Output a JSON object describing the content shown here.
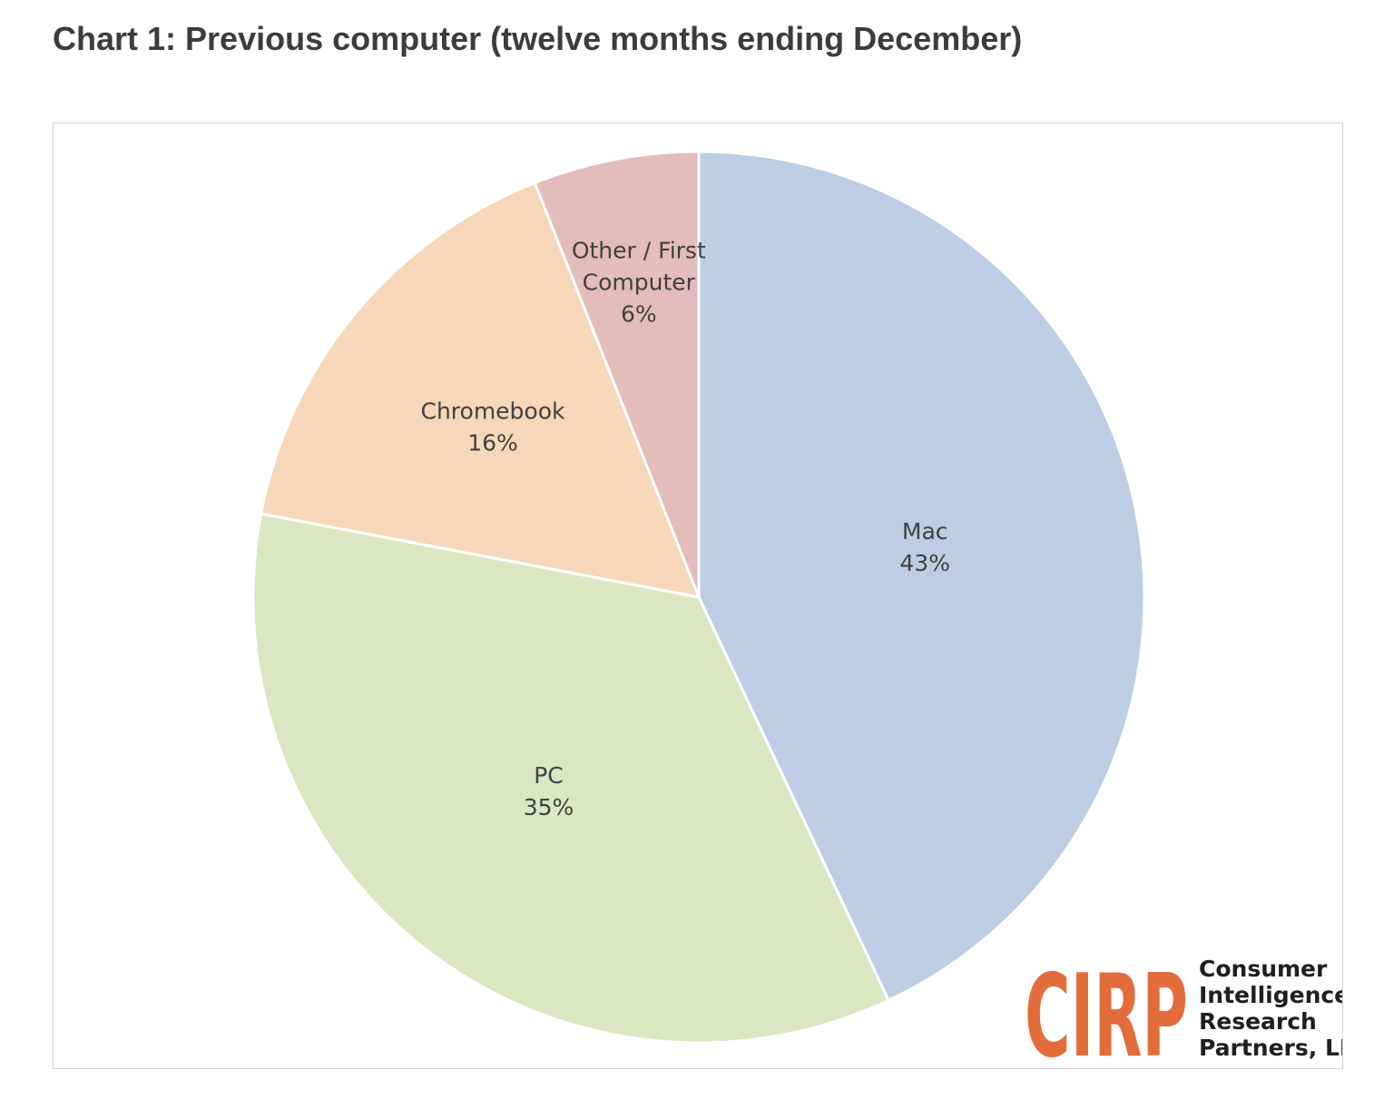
{
  "title": "Chart 1: Previous computer (twelve months ending December)",
  "chart_data": {
    "type": "pie",
    "title": "Chart 1: Previous computer (twelve months ending December)",
    "unit": "%",
    "start_angle": "12 o'clock, clockwise",
    "slices": [
      {
        "label": "Mac",
        "label_lines": [
          "Mac"
        ],
        "value": 43,
        "value_label": "43%",
        "color": "#bccde4"
      },
      {
        "label": "PC",
        "label_lines": [
          "PC"
        ],
        "value": 35,
        "value_label": "35%",
        "color": "#dce6c2"
      },
      {
        "label": "Chromebook",
        "label_lines": [
          "Chromebook"
        ],
        "value": 16,
        "value_label": "16%",
        "color": "#f6d7b9"
      },
      {
        "label": "Other / First Computer",
        "label_lines": [
          "Other / First",
          "Computer"
        ],
        "value": 6,
        "value_label": "6%",
        "color": "#e3bcbc"
      }
    ],
    "legend": "none",
    "data_labels": "inside slices"
  },
  "logo": {
    "mark": "CIRP",
    "lines": [
      "Consumer",
      "Intelligence",
      "Research",
      "Partners, LLC"
    ],
    "color": "#e26d3b"
  }
}
